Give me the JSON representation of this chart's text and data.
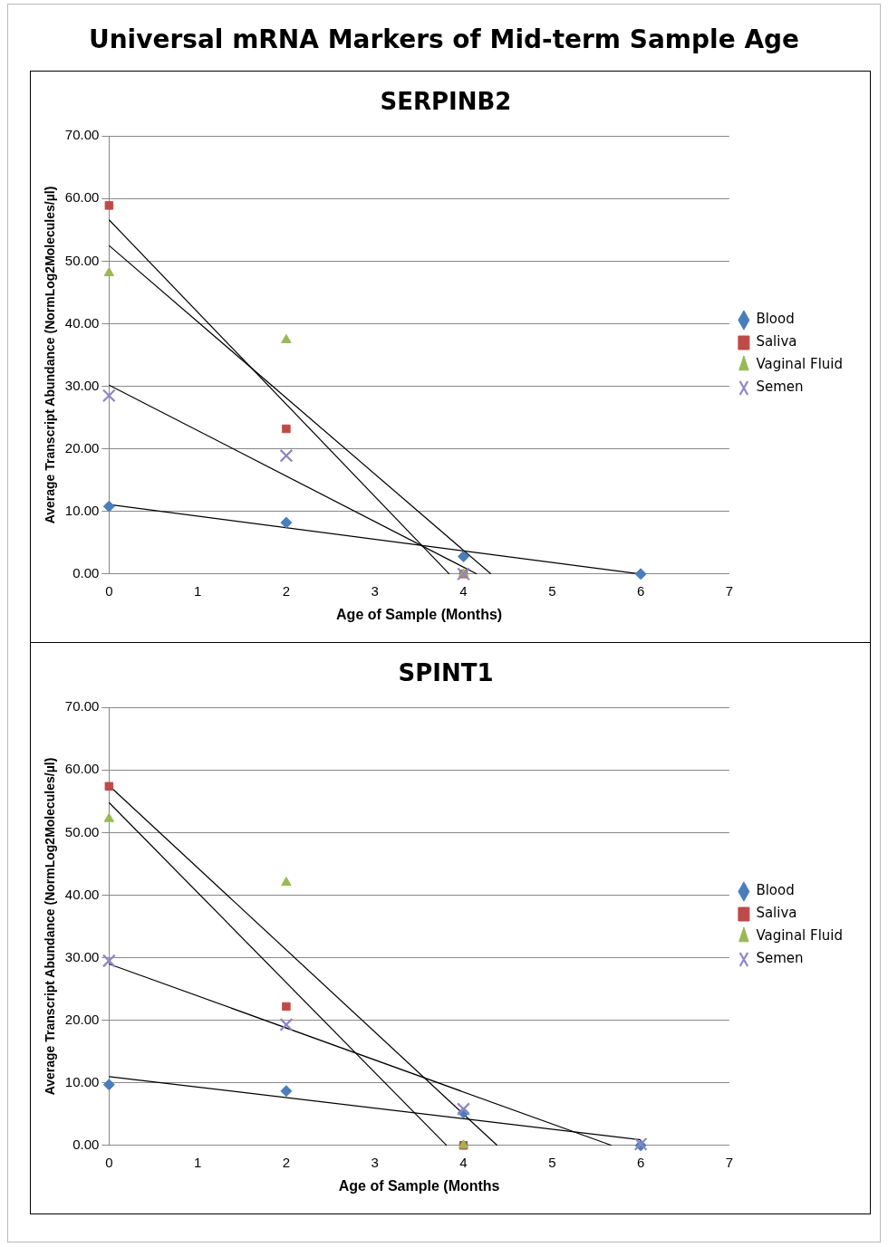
{
  "chart_data": [
    {
      "type": "other",
      "title": "Universal mRNA Markers of Mid-term Sample Age"
    },
    {
      "type": "scatter",
      "title": "SERPINB2",
      "xlabel": "Age of Sample (Months)",
      "ylabel": "Average Transcript Abundance (NormLog2Molecules/µl)",
      "xlim": [
        0,
        7
      ],
      "xticks": [
        0,
        1,
        2,
        3,
        4,
        5,
        6,
        7
      ],
      "ylim": [
        0,
        70
      ],
      "yticks": [
        {
          "value": 0,
          "label": "0.00"
        },
        {
          "value": 10,
          "label": "10.00"
        },
        {
          "value": 20,
          "label": "20.00"
        },
        {
          "value": 30,
          "label": "30.00"
        },
        {
          "value": 40,
          "label": "40.00"
        },
        {
          "value": 50,
          "label": "50.00"
        },
        {
          "value": 60,
          "label": "60.00"
        },
        {
          "value": 70,
          "label": "70.00"
        }
      ],
      "grid": "y",
      "legend": "right",
      "series": [
        {
          "name": "Blood",
          "color": "#4a7ebb",
          "marker": "diamond",
          "x": [
            0,
            2,
            4,
            6
          ],
          "values": [
            10.8,
            8.2,
            2.8,
            0
          ]
        },
        {
          "name": "Saliva",
          "color": "#be4b48",
          "marker": "square",
          "x": [
            0,
            2,
            4
          ],
          "values": [
            58.9,
            23.2,
            0
          ]
        },
        {
          "name": "Vaginal Fluid",
          "color": "#98b954",
          "marker": "triangle",
          "x": [
            0,
            2,
            4
          ],
          "values": [
            48.1,
            37.4,
            0
          ]
        },
        {
          "name": "Semen",
          "color": "#8f86c4",
          "marker": "cross",
          "x": [
            0,
            2,
            4
          ],
          "values": [
            28.5,
            18.9,
            0
          ]
        },
        {
          "type": "line",
          "color": "#000000",
          "marker": "none",
          "x": [
            0,
            6
          ],
          "values": [
            11.1,
            0
          ]
        },
        {
          "type": "line",
          "color": "#000000",
          "marker": "none",
          "x": [
            0,
            3.84
          ],
          "values": [
            56.6,
            0
          ]
        },
        {
          "type": "line",
          "color": "#000000",
          "marker": "none",
          "x": [
            0,
            4.31
          ],
          "values": [
            52.5,
            0
          ]
        },
        {
          "type": "line",
          "color": "#000000",
          "marker": "none",
          "x": [
            0,
            4.15
          ],
          "values": [
            30.2,
            0
          ]
        }
      ]
    },
    {
      "type": "scatter",
      "title": "SPINT1",
      "xlabel": "Age of Sample (Months",
      "ylabel": "Average Transcript Abundance (NormLog2Molecules/µl)",
      "xlim": [
        0,
        7
      ],
      "xticks": [
        0,
        1,
        2,
        3,
        4,
        5,
        6,
        7
      ],
      "ylim": [
        0,
        70
      ],
      "yticks": [
        {
          "value": 0,
          "label": "0.00"
        },
        {
          "value": 10,
          "label": "10.00"
        },
        {
          "value": 20,
          "label": "20.00"
        },
        {
          "value": 30,
          "label": "30.00"
        },
        {
          "value": 40,
          "label": "40.00"
        },
        {
          "value": 50,
          "label": "50.00"
        },
        {
          "value": 60,
          "label": "60.00"
        },
        {
          "value": 70,
          "label": "70.00"
        }
      ],
      "grid": "y",
      "legend": "right",
      "series": [
        {
          "name": "Blood",
          "color": "#4a7ebb",
          "marker": "diamond",
          "x": [
            0,
            2,
            4,
            6
          ],
          "values": [
            9.7,
            8.7,
            5.2,
            0
          ]
        },
        {
          "name": "Saliva",
          "color": "#be4b48",
          "marker": "square",
          "x": [
            0,
            2,
            4
          ],
          "values": [
            57.4,
            22.2,
            0
          ]
        },
        {
          "name": "Vaginal Fluid",
          "color": "#98b954",
          "marker": "triangle",
          "x": [
            0,
            2,
            4
          ],
          "values": [
            52.2,
            42.0,
            0
          ]
        },
        {
          "name": "Semen",
          "color": "#8f86c4",
          "marker": "cross",
          "x": [
            0,
            2,
            4,
            6
          ],
          "values": [
            29.5,
            19.3,
            5.8,
            0.2
          ]
        },
        {
          "type": "line",
          "color": "#000000",
          "marker": "none",
          "x": [
            0,
            6
          ],
          "values": [
            11.0,
            0.9
          ]
        },
        {
          "type": "line",
          "color": "#000000",
          "marker": "none",
          "x": [
            0,
            3.81
          ],
          "values": [
            54.8,
            0
          ]
        },
        {
          "type": "line",
          "color": "#000000",
          "marker": "none",
          "x": [
            0,
            4.38
          ],
          "values": [
            57.5,
            0
          ]
        },
        {
          "type": "line",
          "color": "#000000",
          "marker": "none",
          "x": [
            0,
            5.67
          ],
          "values": [
            29.0,
            0
          ]
        }
      ]
    }
  ]
}
